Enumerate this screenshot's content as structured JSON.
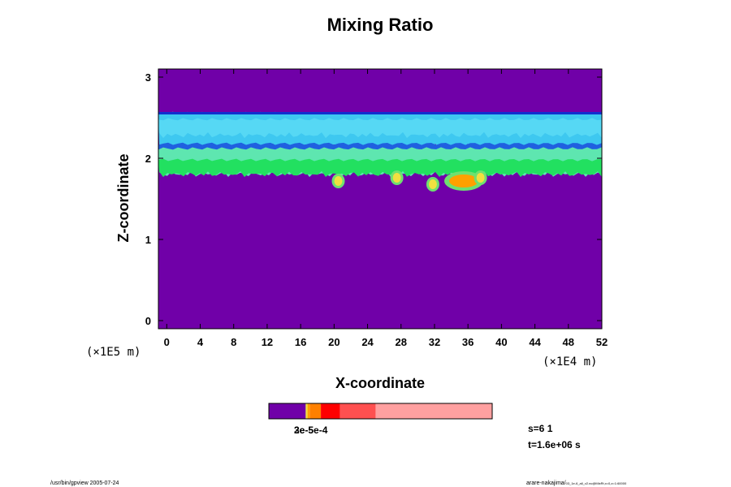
{
  "chart_data": {
    "type": "heatmap",
    "title": "Mixing Ratio",
    "xlabel": "X-coordinate",
    "ylabel": "Z-coordinate",
    "x_unit": "(×1E4 m)",
    "y_unit": "(×1E5 m)",
    "xlim": [
      -1,
      52
    ],
    "ylim": [
      -0.1,
      3.1
    ],
    "x_ticks": [
      0,
      4,
      8,
      12,
      16,
      20,
      24,
      28,
      32,
      36,
      40,
      44,
      48,
      52
    ],
    "y_ticks": [
      0,
      1,
      2,
      3
    ],
    "background_color": "#7000a8",
    "layers": [
      {
        "name": "upper-band",
        "x_range": [
          -1,
          52
        ],
        "z_range": [
          2.16,
          2.56
        ],
        "color": "#3ec8f0"
      },
      {
        "name": "upper-band-core",
        "x_range": [
          -1,
          52
        ],
        "z_range": [
          2.3,
          2.48
        ],
        "color": "#56d8f4"
      },
      {
        "name": "mid-band",
        "x_range": [
          -1,
          52
        ],
        "z_range": [
          2.1,
          2.18
        ],
        "color": "#2060e0"
      },
      {
        "name": "lower-band",
        "x_range": [
          -1,
          52
        ],
        "z_range": [
          1.82,
          2.12
        ],
        "color": "#5ee6b0"
      },
      {
        "name": "lower-band-green",
        "x_range": [
          -1,
          52
        ],
        "z_range": [
          1.82,
          1.98
        ],
        "color": "#22e060"
      }
    ],
    "hotspots": [
      {
        "x": 20.5,
        "z": 1.72,
        "color": "#f0e040"
      },
      {
        "x": 27.5,
        "z": 1.76,
        "color": "#f0e040"
      },
      {
        "x": 31.8,
        "z": 1.68,
        "color": "#f0e040"
      },
      {
        "x": 35.5,
        "z": 1.72,
        "color": "#ffa000"
      },
      {
        "x": 37.5,
        "z": 1.76,
        "color": "#f0e040"
      }
    ]
  },
  "colorbar": {
    "segments": [
      {
        "width": 0.165,
        "color": "#7000a8"
      },
      {
        "width": 0.008,
        "color": "#f0e040"
      },
      {
        "width": 0.01,
        "color": "#ffa000"
      },
      {
        "width": 0.05,
        "color": "#ff8000"
      },
      {
        "width": 0.085,
        "color": "#ff0000"
      },
      {
        "width": 0.16,
        "color": "#ff5050"
      },
      {
        "width": 0.522,
        "color": "#ffa0a0"
      }
    ],
    "label": "3e-5e-4",
    "label_overlap": "2e-5"
  },
  "info": {
    "step": "s=6 1",
    "time": "t=1.6e+06 s"
  },
  "footer": {
    "left": "/usr/bin/gpview 2005-07-24",
    "right": "arare-nakajima/",
    "right_small": "03_1e-6_all_v2.nc@MixRt,x=0,z=1:60000"
  }
}
